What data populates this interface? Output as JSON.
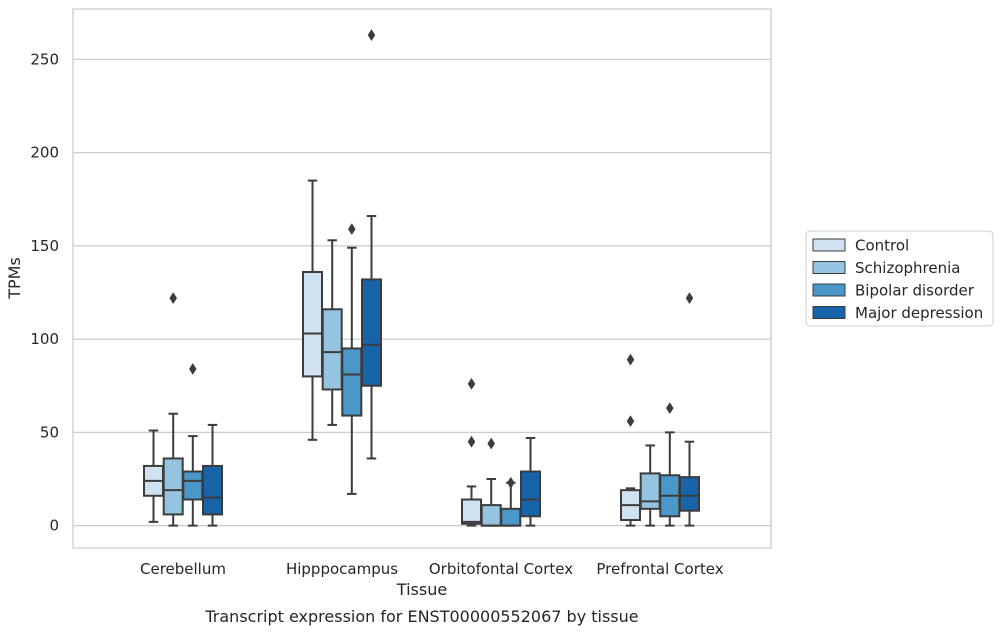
{
  "chart_data": {
    "type": "box",
    "caption": "Transcript expression for ENST00000552067 by tissue",
    "xlabel": "Tissue",
    "ylabel": "TPMs",
    "ylim": [
      -12,
      277
    ],
    "yticks": [
      0,
      50,
      100,
      150,
      200,
      250
    ],
    "grid": "horizontal",
    "legend_position": "right",
    "categories": [
      "Cerebellum",
      "Hipppocampus",
      "Orbitofontal Cortex",
      "Prefrontal Cortex"
    ],
    "series": [
      {
        "name": "Control",
        "color": "#d0e1f2",
        "boxes": [
          {
            "whisker_low": 2,
            "q1": 16,
            "median": 24,
            "q3": 32,
            "whisker_high": 51,
            "outliers": []
          },
          {
            "whisker_low": 46,
            "q1": 80,
            "median": 103,
            "q3": 136,
            "whisker_high": 185,
            "outliers": []
          },
          {
            "whisker_low": 0,
            "q1": 1,
            "median": 2,
            "q3": 14,
            "whisker_high": 21,
            "outliers": [
              45,
              76
            ]
          },
          {
            "whisker_low": 0,
            "q1": 3,
            "median": 11,
            "q3": 19,
            "whisker_high": 20,
            "outliers": [
              56,
              89
            ]
          }
        ]
      },
      {
        "name": "Schizophrenia",
        "color": "#94c4df",
        "boxes": [
          {
            "whisker_low": 0,
            "q1": 6,
            "median": 19,
            "q3": 36,
            "whisker_high": 60,
            "outliers": [
              122
            ]
          },
          {
            "whisker_low": 54,
            "q1": 73,
            "median": 93,
            "q3": 116,
            "whisker_high": 153,
            "outliers": []
          },
          {
            "whisker_low": 0,
            "q1": 0,
            "median": 0,
            "q3": 11,
            "whisker_high": 25,
            "outliers": [
              44
            ]
          },
          {
            "whisker_low": 0,
            "q1": 9,
            "median": 13,
            "q3": 28,
            "whisker_high": 43,
            "outliers": []
          }
        ]
      },
      {
        "name": "Bipolar disorder",
        "color": "#4a98c9",
        "boxes": [
          {
            "whisker_low": 0,
            "q1": 14,
            "median": 24,
            "q3": 29,
            "whisker_high": 48,
            "outliers": [
              84
            ]
          },
          {
            "whisker_low": 17,
            "q1": 59,
            "median": 81,
            "q3": 95,
            "whisker_high": 149,
            "outliers": [
              159
            ]
          },
          {
            "whisker_low": 0,
            "q1": 0,
            "median": 0,
            "q3": 9,
            "whisker_high": 23,
            "outliers": [
              23
            ]
          },
          {
            "whisker_low": 0,
            "q1": 5,
            "median": 16,
            "q3": 27,
            "whisker_high": 50,
            "outliers": [
              63
            ]
          }
        ]
      },
      {
        "name": "Major depression",
        "color": "#1764ab",
        "boxes": [
          {
            "whisker_low": 0,
            "q1": 6,
            "median": 15,
            "q3": 32,
            "whisker_high": 54,
            "outliers": []
          },
          {
            "whisker_low": 36,
            "q1": 75,
            "median": 97,
            "q3": 132,
            "whisker_high": 166,
            "outliers": [
              263
            ]
          },
          {
            "whisker_low": 0,
            "q1": 5,
            "median": 14,
            "q3": 29,
            "whisker_high": 47,
            "outliers": []
          },
          {
            "whisker_low": 0,
            "q1": 8,
            "median": 16,
            "q3": 26,
            "whisker_high": 45,
            "outliers": [
              122
            ]
          }
        ]
      }
    ]
  }
}
